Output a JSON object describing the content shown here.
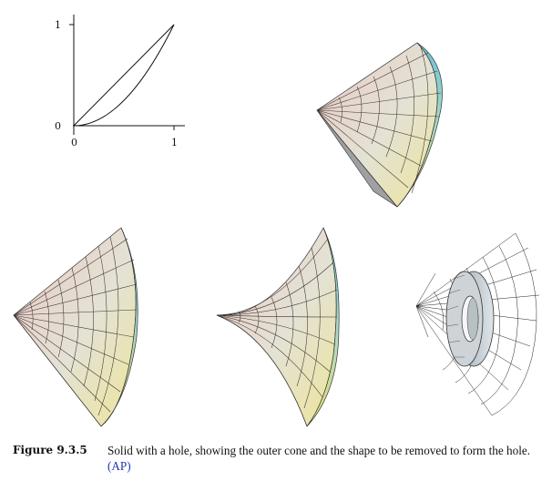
{
  "graph": {
    "x_ticks": [
      "0",
      "1"
    ],
    "y_ticks": [
      "0",
      "1"
    ]
  },
  "caption": {
    "label": "Figure 9.3.5",
    "text": "Solid with a hole, showing the outer cone and the shape to be removed to form the hole.",
    "link_text": "(AP)"
  },
  "colors": {
    "link": "#2233bb",
    "surface_top": "#7cc9d8",
    "surface_bottom": "#e8e27a",
    "surface_apex": "#c89a9a"
  }
}
